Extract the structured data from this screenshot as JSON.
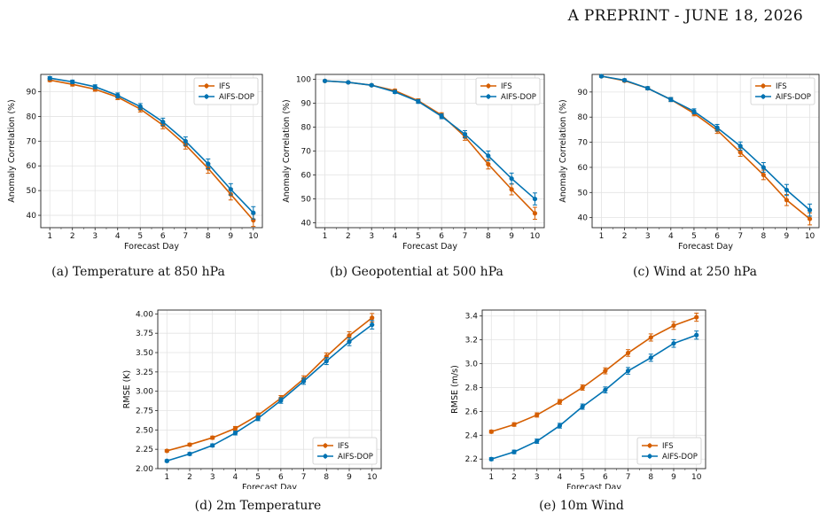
{
  "header": {
    "text": "A PREPRINT - JUNE 18, 2026"
  },
  "colors": {
    "ifs": "#D55E00",
    "aifs": "#0072B2",
    "grid": "#e3e3e3"
  },
  "chart_data": [
    {
      "id": "a",
      "type": "line",
      "caption": "(a) Temperature at 850 hPa",
      "xlabel": "Forecast Day",
      "ylabel": "Anomaly Correlation (%)",
      "x": [
        1,
        2,
        3,
        4,
        5,
        6,
        7,
        8,
        9,
        10
      ],
      "ylim": [
        35,
        97
      ],
      "yticks": [
        40,
        50,
        60,
        70,
        80,
        90
      ],
      "ytick_labels": [
        "40",
        "50",
        "60",
        "70",
        "80",
        "90"
      ],
      "legend": "top-right",
      "grid": true,
      "series": [
        {
          "name": "IFS",
          "values": [
            94.7,
            93.0,
            91.0,
            87.8,
            83.0,
            76.5,
            68.5,
            59.0,
            48.5,
            38.0
          ],
          "err": [
            0.6,
            0.7,
            0.8,
            1.0,
            1.2,
            1.5,
            1.7,
            2.0,
            2.3,
            2.5
          ]
        },
        {
          "name": "AIFS-DOP",
          "values": [
            95.5,
            94.0,
            92.0,
            88.5,
            84.0,
            77.8,
            70.0,
            60.8,
            50.5,
            41.0
          ],
          "err": [
            0.6,
            0.7,
            0.8,
            1.0,
            1.2,
            1.5,
            1.7,
            2.0,
            2.3,
            2.5
          ]
        }
      ]
    },
    {
      "id": "b",
      "type": "line",
      "caption": "(b) Geopotential at 500 hPa",
      "xlabel": "Forecast Day",
      "ylabel": "Anomaly Correlation (%)",
      "x": [
        1,
        2,
        3,
        4,
        5,
        6,
        7,
        8,
        9,
        10
      ],
      "ylim": [
        38,
        102
      ],
      "yticks": [
        40,
        50,
        60,
        70,
        80,
        90,
        100
      ],
      "ytick_labels": [
        "40",
        "50",
        "60",
        "70",
        "80",
        "90",
        "100"
      ],
      "legend": "top-right",
      "grid": true,
      "series": [
        {
          "name": "IFS",
          "values": [
            99.3,
            98.7,
            97.5,
            95.2,
            91.0,
            85.0,
            76.0,
            64.5,
            54.0,
            44.0
          ],
          "err": [
            0.2,
            0.3,
            0.4,
            0.6,
            0.8,
            1.0,
            1.5,
            2.0,
            2.3,
            2.5
          ]
        },
        {
          "name": "AIFS-DOP",
          "values": [
            99.3,
            98.7,
            97.5,
            94.7,
            90.7,
            84.5,
            77.0,
            68.0,
            58.5,
            50.0
          ],
          "err": [
            0.2,
            0.3,
            0.4,
            0.6,
            0.8,
            1.0,
            1.5,
            2.0,
            2.3,
            2.5
          ]
        }
      ]
    },
    {
      "id": "c",
      "type": "line",
      "caption": "(c) Wind at 250 hPa",
      "xlabel": "Forecast Day",
      "ylabel": "Anomaly Correlation (%)",
      "x": [
        1,
        2,
        3,
        4,
        5,
        6,
        7,
        8,
        9,
        10
      ],
      "ylim": [
        36,
        97
      ],
      "yticks": [
        40,
        50,
        60,
        70,
        80,
        90
      ],
      "ytick_labels": [
        "40",
        "50",
        "60",
        "70",
        "80",
        "90"
      ],
      "legend": "top-right",
      "grid": true,
      "series": [
        {
          "name": "IFS",
          "values": [
            96.3,
            94.5,
            91.5,
            87.0,
            81.5,
            74.8,
            66.0,
            57.0,
            47.0,
            39.5
          ],
          "err": [
            0.4,
            0.5,
            0.6,
            0.8,
            1.0,
            1.3,
            1.6,
            1.9,
            2.2,
            2.4
          ]
        },
        {
          "name": "AIFS-DOP",
          "values": [
            96.3,
            94.7,
            91.5,
            87.0,
            82.3,
            75.8,
            68.5,
            60.0,
            51.0,
            43.0
          ],
          "err": [
            0.4,
            0.5,
            0.6,
            0.8,
            1.0,
            1.3,
            1.6,
            1.9,
            2.2,
            2.4
          ]
        }
      ]
    },
    {
      "id": "d",
      "type": "line",
      "caption": "(d) 2m Temperature",
      "xlabel": "Forecast Day",
      "ylabel": "RMSE (K)",
      "x": [
        1,
        2,
        3,
        4,
        5,
        6,
        7,
        8,
        9,
        10
      ],
      "ylim": [
        2.0,
        4.05
      ],
      "yticks": [
        2.0,
        2.25,
        2.5,
        2.75,
        3.0,
        3.25,
        3.5,
        3.75,
        4.0
      ],
      "ytick_labels": [
        "2.00",
        "2.25",
        "2.50",
        "2.75",
        "3.00",
        "3.25",
        "3.50",
        "3.75",
        "4.00"
      ],
      "legend": "bottom-right",
      "grid": true,
      "series": [
        {
          "name": "IFS",
          "values": [
            2.23,
            2.31,
            2.4,
            2.52,
            2.69,
            2.91,
            3.16,
            3.45,
            3.72,
            3.95
          ],
          "err": [
            0.015,
            0.018,
            0.02,
            0.025,
            0.03,
            0.035,
            0.04,
            0.045,
            0.05,
            0.055
          ]
        },
        {
          "name": "AIFS-DOP",
          "values": [
            2.1,
            2.19,
            2.3,
            2.46,
            2.65,
            2.88,
            3.13,
            3.39,
            3.64,
            3.86
          ],
          "err": [
            0.015,
            0.018,
            0.02,
            0.025,
            0.03,
            0.035,
            0.04,
            0.045,
            0.05,
            0.055
          ]
        }
      ]
    },
    {
      "id": "e",
      "type": "line",
      "caption": "(e) 10m Wind",
      "xlabel": "Forecast Day",
      "ylabel": "RMSE (m/s)",
      "x": [
        1,
        2,
        3,
        4,
        5,
        6,
        7,
        8,
        9,
        10
      ],
      "ylim": [
        2.12,
        3.45
      ],
      "yticks": [
        2.2,
        2.4,
        2.6,
        2.8,
        3.0,
        3.2,
        3.4
      ],
      "ytick_labels": [
        "2.2",
        "2.4",
        "2.6",
        "2.8",
        "3.0",
        "3.2",
        "3.4"
      ],
      "legend": "bottom-right",
      "grid": true,
      "series": [
        {
          "name": "IFS",
          "values": [
            2.43,
            2.49,
            2.57,
            2.68,
            2.8,
            2.94,
            3.09,
            3.22,
            3.32,
            3.39
          ],
          "err": [
            0.012,
            0.015,
            0.018,
            0.02,
            0.022,
            0.025,
            0.028,
            0.03,
            0.032,
            0.034
          ]
        },
        {
          "name": "AIFS-DOP",
          "values": [
            2.2,
            2.26,
            2.35,
            2.48,
            2.64,
            2.78,
            2.94,
            3.05,
            3.17,
            3.24
          ],
          "err": [
            0.012,
            0.015,
            0.018,
            0.02,
            0.022,
            0.025,
            0.028,
            0.03,
            0.032,
            0.034
          ]
        }
      ]
    }
  ]
}
